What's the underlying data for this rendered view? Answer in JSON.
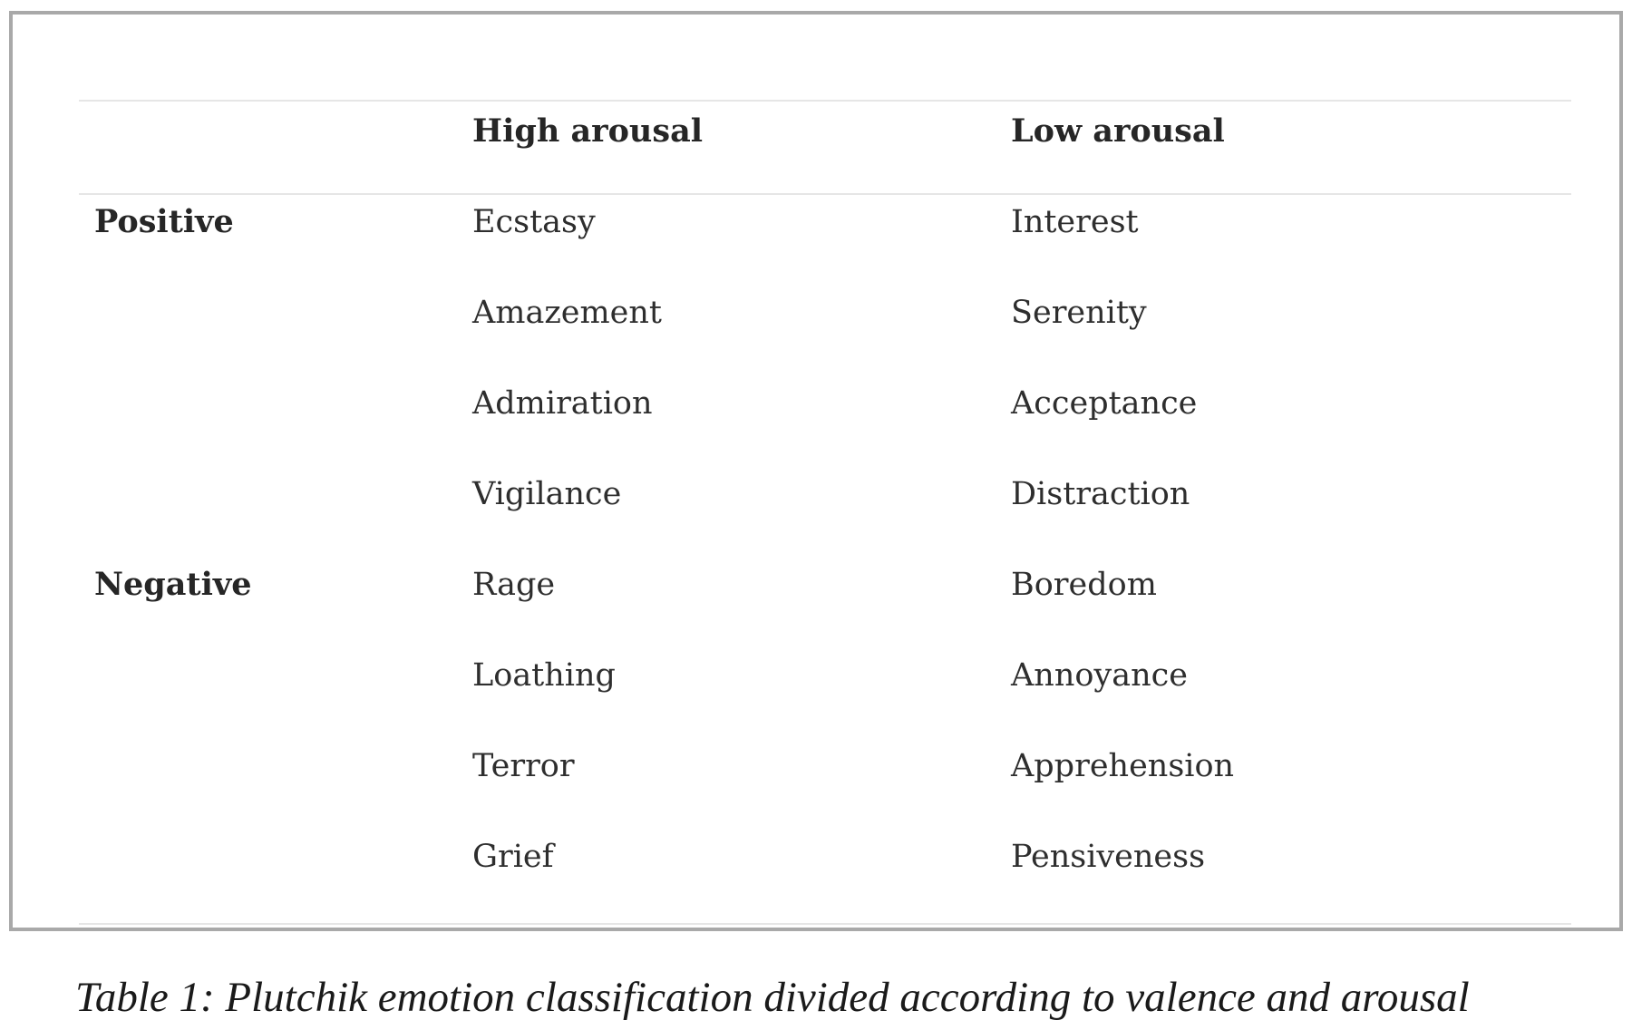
{
  "table": {
    "headers": {
      "corner": "",
      "high": "High arousal",
      "low": "Low arousal"
    },
    "groups": [
      {
        "label": "Positive",
        "rows": [
          {
            "high": "Ecstasy",
            "low": "Interest"
          },
          {
            "high": "Amazement",
            "low": "Serenity"
          },
          {
            "high": "Admiration",
            "low": "Acceptance"
          },
          {
            "high": "Vigilance",
            "low": "Distraction"
          }
        ]
      },
      {
        "label": "Negative",
        "rows": [
          {
            "high": "Rage",
            "low": "Boredom"
          },
          {
            "high": "Loathing",
            "low": "Annoyance"
          },
          {
            "high": "Terror",
            "low": "Apprehension"
          },
          {
            "high": "Grief",
            "low": "Pensiveness"
          }
        ]
      }
    ]
  },
  "caption": "Table 1: Plutchik emotion classification divided according to valence and arousal"
}
